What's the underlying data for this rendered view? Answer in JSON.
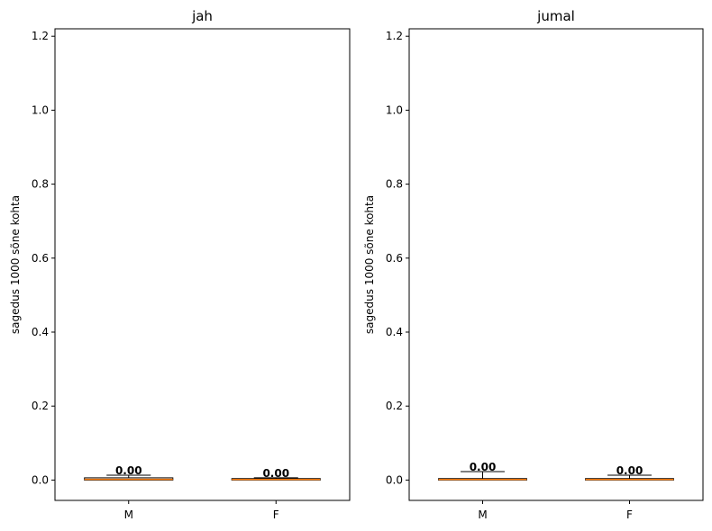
{
  "chart_data": [
    {
      "type": "box",
      "title": "jah",
      "xlabel": "",
      "ylabel": "sagedus 1000 sõne kohta",
      "categories": [
        "M",
        "F"
      ],
      "ylim": [
        -0.055,
        1.22
      ],
      "yticks": [
        "0.0",
        "0.2",
        "0.4",
        "0.6",
        "0.8",
        "1.0",
        "1.2"
      ],
      "boxes": [
        {
          "category": "M",
          "whisker_low": 0.0,
          "q1": 0.0,
          "median": 0.002,
          "q3": 0.006,
          "whisker_high": 0.013,
          "label": "0.00"
        },
        {
          "category": "F",
          "whisker_low": 0.0,
          "q1": 0.0,
          "median": 0.0015,
          "q3": 0.004,
          "whisker_high": 0.006,
          "label": "0.00"
        }
      ],
      "grid": false,
      "colors": {
        "median": "#ff7f0e",
        "box": "#000000"
      }
    },
    {
      "type": "box",
      "title": "jumal",
      "xlabel": "",
      "ylabel": "sagedus 1000 sõne kohta",
      "categories": [
        "M",
        "F"
      ],
      "ylim": [
        -0.055,
        1.22
      ],
      "yticks": [
        "0.0",
        "0.2",
        "0.4",
        "0.6",
        "0.8",
        "1.0",
        "1.2"
      ],
      "boxes": [
        {
          "category": "M",
          "whisker_low": 0.0,
          "q1": 0.0,
          "median": 0.0015,
          "q3": 0.004,
          "whisker_high": 0.023,
          "label": "0.00"
        },
        {
          "category": "F",
          "whisker_low": 0.0,
          "q1": 0.0,
          "median": 0.0015,
          "q3": 0.004,
          "whisker_high": 0.013,
          "label": "0.00"
        }
      ],
      "grid": false,
      "colors": {
        "median": "#ff7f0e",
        "box": "#000000"
      }
    }
  ]
}
